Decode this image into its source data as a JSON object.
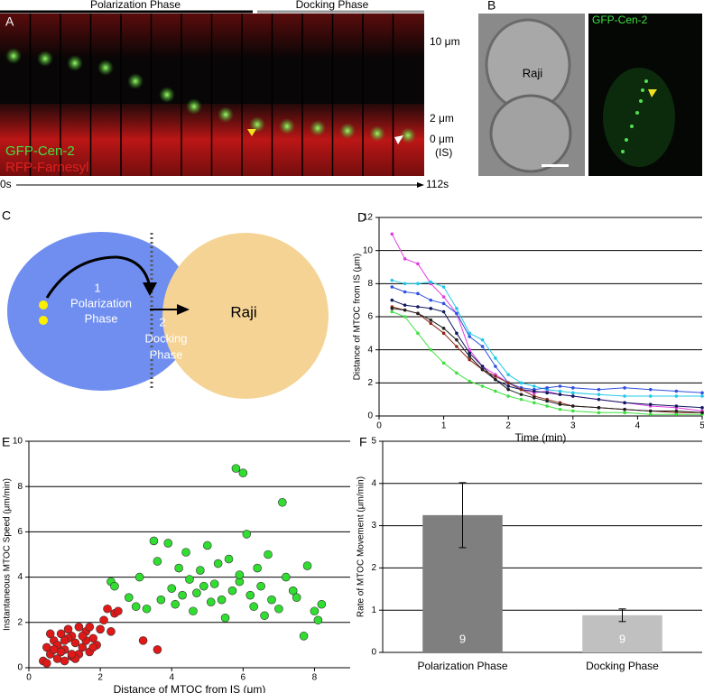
{
  "panel_a": {
    "label": "A",
    "phase_labels": [
      "Polarization Phase",
      "Docking Phase"
    ],
    "scale_labels": [
      "10 μm",
      "2 μm",
      "0 μm",
      "(IS)"
    ],
    "channel_labels": [
      "GFP-Cen-2",
      "RFP-Farnesyl"
    ],
    "time_labels": [
      "0s",
      "112s"
    ]
  },
  "panel_b": {
    "label": "B",
    "cell_label": "Raji",
    "channel_label": "GFP-Cen-2"
  },
  "panel_c": {
    "label": "C",
    "step_1": {
      "number": "1",
      "lines": [
        "Polarization",
        "Phase"
      ]
    },
    "step_2": {
      "number": "2",
      "lines": [
        "Docking",
        "Phase"
      ]
    },
    "target_label": "Raji"
  },
  "chart_data": [
    {
      "type": "line",
      "panel": "D",
      "x_label": "Time (min)",
      "y_label": "Distance of MTOC from IS (μm)",
      "x": [
        0.2,
        0.4,
        0.6,
        0.8,
        1.0,
        1.2,
        1.4,
        1.6,
        1.8,
        2.0,
        2.2,
        2.4,
        2.6,
        2.8,
        3.0,
        3.4,
        3.8,
        4.2,
        4.6,
        5.0
      ],
      "series": [
        {
          "color": "#e040e0",
          "values": [
            11.0,
            9.5,
            9.2,
            8.0,
            7.2,
            6.2,
            4.0,
            3.0,
            2.5,
            2.0,
            1.6,
            1.4,
            1.5,
            1.3,
            1.2,
            1.0,
            0.8,
            0.6,
            0.5,
            0.3
          ]
        },
        {
          "color": "#20c8e8",
          "values": [
            8.2,
            8.0,
            8.0,
            8.1,
            7.8,
            6.5,
            5.0,
            4.6,
            3.5,
            2.5,
            2.0,
            1.8,
            1.6,
            1.5,
            1.4,
            1.3,
            1.2,
            1.2,
            1.2,
            1.2
          ]
        },
        {
          "color": "#3050e0",
          "values": [
            7.8,
            7.5,
            7.4,
            7.0,
            6.8,
            6.2,
            4.8,
            4.2,
            3.0,
            2.0,
            1.7,
            1.6,
            1.7,
            1.8,
            1.7,
            1.6,
            1.7,
            1.6,
            1.5,
            1.4
          ]
        },
        {
          "color": "#101860",
          "values": [
            7.0,
            6.7,
            6.6,
            6.5,
            6.3,
            5.0,
            3.8,
            3.0,
            2.2,
            1.8,
            1.6,
            1.5,
            1.4,
            1.3,
            1.2,
            1.0,
            0.8,
            0.7,
            0.6,
            0.5
          ]
        },
        {
          "color": "#8b2a1a",
          "values": [
            6.6,
            6.4,
            6.2,
            5.6,
            5.0,
            4.2,
            3.4,
            2.8,
            2.4,
            2.0,
            1.6,
            1.2,
            1.0,
            0.8,
            0.6,
            0.5,
            0.4,
            0.3,
            0.2,
            0.2
          ]
        },
        {
          "color": "#40e040",
          "values": [
            6.3,
            6.0,
            5.0,
            4.0,
            3.2,
            2.6,
            2.1,
            1.8,
            1.5,
            1.2,
            1.0,
            0.8,
            0.6,
            0.4,
            0.3,
            0.2,
            0.2,
            0.1,
            0.1,
            0.1
          ]
        },
        {
          "color": "#202020",
          "values": [
            6.5,
            6.4,
            6.2,
            5.8,
            5.3,
            4.6,
            3.6,
            2.8,
            2.2,
            1.6,
            1.3,
            1.1,
            0.9,
            0.7,
            0.6,
            0.5,
            0.4,
            0.3,
            0.3,
            0.2
          ]
        }
      ],
      "xlim": [
        0,
        5
      ],
      "xticks": [
        0,
        1,
        2,
        3,
        4,
        5
      ],
      "ylim": [
        0,
        12
      ],
      "yticks": [
        0,
        2,
        4,
        6,
        8,
        10,
        12
      ],
      "grid": true
    },
    {
      "type": "scatter",
      "panel": "E",
      "x_label": "Distance of MTOC from IS (μm)",
      "y_label": "Instantaneous MTOC Speed (μm/min)",
      "series": [
        {
          "color": "#e01818",
          "x": [
            0.4,
            0.5,
            0.6,
            0.7,
            0.8,
            0.9,
            1.0,
            1.1,
            1.2,
            1.3,
            1.4,
            1.5,
            1.6,
            1.7,
            1.8,
            1.9,
            2.0,
            0.5,
            0.8,
            1.0,
            1.2,
            1.4,
            1.6,
            1.8,
            2.1,
            2.2,
            2.3,
            2.4,
            0.6,
            0.9,
            1.1,
            1.3,
            1.5,
            1.7,
            0.7,
            1.0,
            1.2,
            2.5,
            3.2,
            3.6
          ],
          "values": [
            0.3,
            0.9,
            0.6,
            1.2,
            0.4,
            1.5,
            0.8,
            1.7,
            0.5,
            1.1,
            1.8,
            0.9,
            1.6,
            0.7,
            1.3,
            1.0,
            1.7,
            0.2,
            1.0,
            0.3,
            1.4,
            0.6,
            1.2,
            0.9,
            2.1,
            2.6,
            1.6,
            2.4,
            1.5,
            0.7,
            1.3,
            0.4,
            1.4,
            1.8,
            0.8,
            1.2,
            0.6,
            2.5,
            1.2,
            0.8
          ]
        },
        {
          "color": "#30dd30",
          "x": [
            2.3,
            2.4,
            2.8,
            3.0,
            3.1,
            3.3,
            3.5,
            3.6,
            3.7,
            3.9,
            4.0,
            4.1,
            4.2,
            4.3,
            4.4,
            4.5,
            4.6,
            4.7,
            4.8,
            4.9,
            5.0,
            5.1,
            5.2,
            5.3,
            5.4,
            5.5,
            5.6,
            5.7,
            5.8,
            5.9,
            5.9,
            6.0,
            6.1,
            6.2,
            6.3,
            6.4,
            6.5,
            6.6,
            6.7,
            6.8,
            7.0,
            7.1,
            7.2,
            7.4,
            7.5,
            7.7,
            7.8,
            8.0,
            8.1,
            8.2
          ],
          "values": [
            3.8,
            3.6,
            3.1,
            2.7,
            4.0,
            2.6,
            5.6,
            4.7,
            3.0,
            5.5,
            3.5,
            2.8,
            4.4,
            3.2,
            5.1,
            3.9,
            2.5,
            3.3,
            4.3,
            3.6,
            5.4,
            2.9,
            3.7,
            4.6,
            3.0,
            2.2,
            4.8,
            3.4,
            8.8,
            3.8,
            4.1,
            8.6,
            5.9,
            3.2,
            2.7,
            4.4,
            3.6,
            2.3,
            5.0,
            3.0,
            2.6,
            7.3,
            4.0,
            3.4,
            3.1,
            1.4,
            4.5,
            2.5,
            2.1,
            2.8
          ]
        }
      ],
      "xlim": [
        0,
        9
      ],
      "xticks": [
        0,
        2,
        4,
        6,
        8
      ],
      "ylim": [
        0,
        10
      ],
      "yticks": [
        0,
        2,
        4,
        6,
        8,
        10
      ],
      "grid": true
    },
    {
      "type": "bar",
      "panel": "F",
      "y_label": "Rate of MTOC Movement (μm/min)",
      "categories": [
        "Polarization Phase",
        "Docking Phase"
      ],
      "values": [
        3.25,
        0.88
      ],
      "errors": [
        0.77,
        0.15
      ],
      "n_labels": [
        "9",
        "9"
      ],
      "colors": [
        "#7f7f7f",
        "#c0c0c0"
      ],
      "ylim": [
        0,
        5
      ],
      "yticks": [
        0,
        1,
        2,
        3,
        4,
        5
      ],
      "grid": true
    }
  ]
}
